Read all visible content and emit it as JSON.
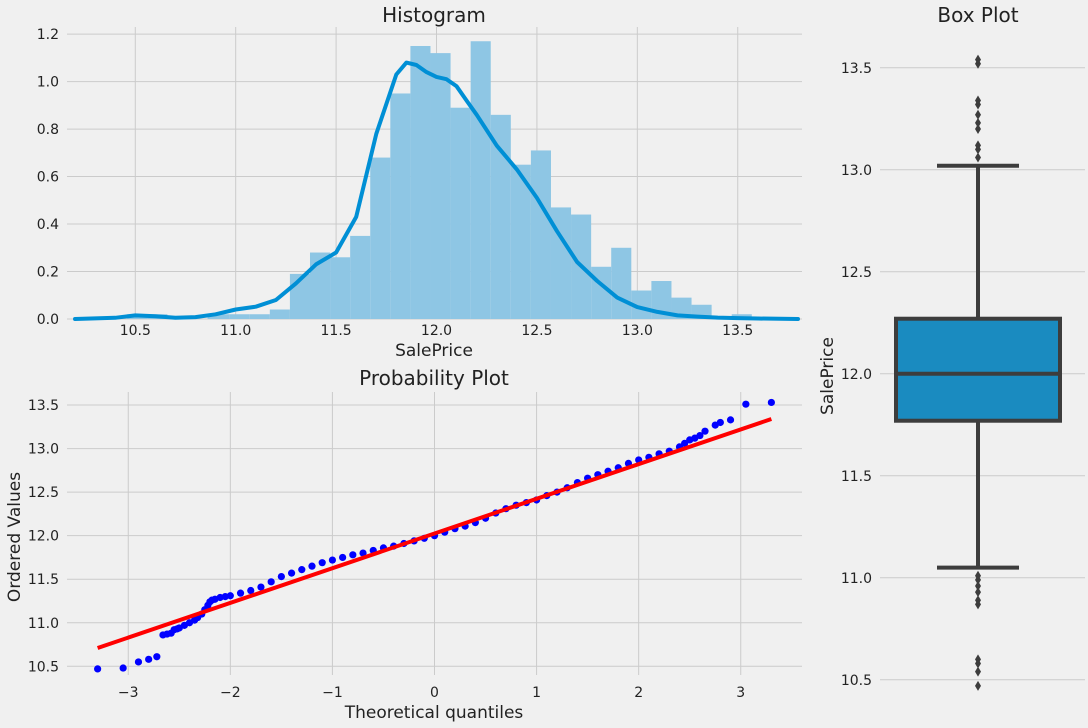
{
  "colors": {
    "background": "#f0f0f0",
    "grid": "#cbcbcb",
    "hist_bar": "#8ec6e4",
    "kde_line": "#008fd5",
    "qq_points": "#0000ff",
    "qq_fit_line": "#ff0000",
    "box_fill": "#1a8bc0",
    "box_edge": "#3d3d3d",
    "text": "#222222"
  },
  "chart_data": [
    {
      "type": "bar",
      "subtype": "histogram-with-kde",
      "title": "Histogram",
      "xlabel": "SalePrice",
      "ylabel": "",
      "xlim": [
        10.16,
        13.82
      ],
      "ylim": [
        0,
        1.23
      ],
      "xticks": [
        "10.5",
        "11.0",
        "11.5",
        "12.0",
        "12.5",
        "13.0",
        "13.5"
      ],
      "yticks": [
        "0.0",
        "0.2",
        "0.4",
        "0.6",
        "0.8",
        "1.0",
        "1.2"
      ],
      "grid": true,
      "bins": [
        {
          "x0": 10.46,
          "x1": 10.56,
          "value": 0.02
        },
        {
          "x0": 10.56,
          "x1": 10.66,
          "value": 0.02
        },
        {
          "x0": 10.66,
          "x1": 10.76,
          "value": 0.0
        },
        {
          "x0": 10.76,
          "x1": 10.86,
          "value": 0.0
        },
        {
          "x0": 10.86,
          "x1": 10.97,
          "value": 0.02
        },
        {
          "x0": 10.97,
          "x1": 11.07,
          "value": 0.02
        },
        {
          "x0": 11.07,
          "x1": 11.17,
          "value": 0.02
        },
        {
          "x0": 11.17,
          "x1": 11.27,
          "value": 0.04
        },
        {
          "x0": 11.27,
          "x1": 11.37,
          "value": 0.19
        },
        {
          "x0": 11.37,
          "x1": 11.47,
          "value": 0.28
        },
        {
          "x0": 11.47,
          "x1": 11.57,
          "value": 0.26
        },
        {
          "x0": 11.57,
          "x1": 11.67,
          "value": 0.35
        },
        {
          "x0": 11.67,
          "x1": 11.77,
          "value": 0.68
        },
        {
          "x0": 11.77,
          "x1": 11.87,
          "value": 0.95
        },
        {
          "x0": 11.87,
          "x1": 11.97,
          "value": 1.15
        },
        {
          "x0": 11.97,
          "x1": 12.07,
          "value": 1.12
        },
        {
          "x0": 12.07,
          "x1": 12.17,
          "value": 0.89
        },
        {
          "x0": 12.17,
          "x1": 12.27,
          "value": 1.17
        },
        {
          "x0": 12.27,
          "x1": 12.37,
          "value": 0.86
        },
        {
          "x0": 12.37,
          "x1": 12.47,
          "value": 0.65
        },
        {
          "x0": 12.47,
          "x1": 12.57,
          "value": 0.71
        },
        {
          "x0": 12.57,
          "x1": 12.67,
          "value": 0.47
        },
        {
          "x0": 12.67,
          "x1": 12.77,
          "value": 0.44
        },
        {
          "x0": 12.77,
          "x1": 12.87,
          "value": 0.22
        },
        {
          "x0": 12.87,
          "x1": 12.97,
          "value": 0.3
        },
        {
          "x0": 12.97,
          "x1": 13.07,
          "value": 0.12
        },
        {
          "x0": 13.07,
          "x1": 13.17,
          "value": 0.16
        },
        {
          "x0": 13.17,
          "x1": 13.27,
          "value": 0.09
        },
        {
          "x0": 13.27,
          "x1": 13.37,
          "value": 0.06
        },
        {
          "x0": 13.37,
          "x1": 13.47,
          "value": 0.0
        },
        {
          "x0": 13.47,
          "x1": 13.57,
          "value": 0.02
        }
      ],
      "kde": {
        "x": [
          10.2,
          10.4,
          10.5,
          10.6,
          10.7,
          10.8,
          10.9,
          11.0,
          11.1,
          11.2,
          11.3,
          11.4,
          11.5,
          11.6,
          11.7,
          11.8,
          11.85,
          11.9,
          11.95,
          12.0,
          12.05,
          12.1,
          12.15,
          12.2,
          12.3,
          12.4,
          12.5,
          12.6,
          12.7,
          12.8,
          12.9,
          13.0,
          13.1,
          13.2,
          13.3,
          13.4,
          13.5,
          13.6,
          13.8
        ],
        "y": [
          0.0,
          0.005,
          0.015,
          0.012,
          0.005,
          0.008,
          0.02,
          0.04,
          0.052,
          0.08,
          0.15,
          0.23,
          0.28,
          0.43,
          0.78,
          1.03,
          1.08,
          1.07,
          1.04,
          1.02,
          1.01,
          0.98,
          0.92,
          0.86,
          0.73,
          0.63,
          0.51,
          0.37,
          0.24,
          0.16,
          0.09,
          0.05,
          0.03,
          0.015,
          0.01,
          0.006,
          0.004,
          0.002,
          0.0
        ]
      }
    },
    {
      "type": "scatter",
      "subtype": "probability-plot",
      "title": "Probability Plot",
      "xlabel": "Theoretical quantiles",
      "ylabel": "Ordered Values",
      "xlim": [
        -3.6,
        3.6
      ],
      "ylim": [
        10.4,
        13.65
      ],
      "xticks": [
        "−3",
        "−2",
        "−1",
        "0",
        "1",
        "2",
        "3"
      ],
      "yticks": [
        "10.5",
        "11.0",
        "11.5",
        "12.0",
        "12.5",
        "13.0",
        "13.5"
      ],
      "grid": true,
      "fit_line": {
        "x": [
          -3.3,
          3.3
        ],
        "y": [
          10.71,
          13.34
        ]
      },
      "points": {
        "x": [
          -3.3,
          -3.05,
          -2.9,
          -2.8,
          -2.72,
          -2.66,
          -2.62,
          -2.58,
          -2.55,
          -2.52,
          -2.5,
          -2.45,
          -2.4,
          -2.35,
          -2.32,
          -2.28,
          -2.25,
          -2.22,
          -2.2,
          -2.18,
          -2.15,
          -2.1,
          -2.05,
          -2.0,
          -1.9,
          -1.8,
          -1.7,
          -1.6,
          -1.5,
          -1.4,
          -1.3,
          -1.2,
          -1.1,
          -1.0,
          -0.9,
          -0.8,
          -0.7,
          -0.6,
          -0.5,
          -0.4,
          -0.3,
          -0.2,
          -0.1,
          0.0,
          0.1,
          0.2,
          0.3,
          0.4,
          0.5,
          0.6,
          0.7,
          0.8,
          0.9,
          1.0,
          1.1,
          1.2,
          1.3,
          1.4,
          1.5,
          1.6,
          1.7,
          1.8,
          1.9,
          2.0,
          2.1,
          2.2,
          2.3,
          2.4,
          2.45,
          2.5,
          2.55,
          2.6,
          2.65,
          2.75,
          2.8,
          2.9,
          3.05,
          3.3
        ],
        "y": [
          10.47,
          10.48,
          10.55,
          10.58,
          10.61,
          10.86,
          10.87,
          10.88,
          10.92,
          10.93,
          10.94,
          10.97,
          11.0,
          11.03,
          11.06,
          11.1,
          11.15,
          11.2,
          11.24,
          11.26,
          11.27,
          11.29,
          11.3,
          11.31,
          11.34,
          11.37,
          11.41,
          11.47,
          11.53,
          11.57,
          11.61,
          11.65,
          11.69,
          11.72,
          11.75,
          11.78,
          11.8,
          11.83,
          11.86,
          11.88,
          11.91,
          11.94,
          11.97,
          12.0,
          12.04,
          12.08,
          12.11,
          12.15,
          12.2,
          12.26,
          12.31,
          12.35,
          12.38,
          12.41,
          12.46,
          12.5,
          12.55,
          12.61,
          12.66,
          12.7,
          12.74,
          12.78,
          12.83,
          12.87,
          12.9,
          12.94,
          12.97,
          13.02,
          13.06,
          13.1,
          13.12,
          13.15,
          13.2,
          13.27,
          13.3,
          13.33,
          13.51,
          13.53
        ]
      }
    },
    {
      "type": "box",
      "title": "Box Plot",
      "xlabel": "",
      "ylabel": "SalePrice",
      "ylim": [
        10.45,
        13.7
      ],
      "yticks": [
        "10.5",
        "11.0",
        "11.5",
        "12.0",
        "12.5",
        "13.0",
        "13.5"
      ],
      "grid": true,
      "q1": 11.77,
      "median": 12.0,
      "q3": 12.27,
      "whisker_low": 11.05,
      "whisker_high": 13.02,
      "outliers": [
        10.47,
        10.54,
        10.58,
        10.6,
        10.87,
        10.89,
        10.93,
        10.96,
        10.99,
        11.01,
        13.06,
        13.1,
        13.12,
        13.2,
        13.23,
        13.27,
        13.32,
        13.34,
        13.52,
        13.54
      ]
    }
  ]
}
